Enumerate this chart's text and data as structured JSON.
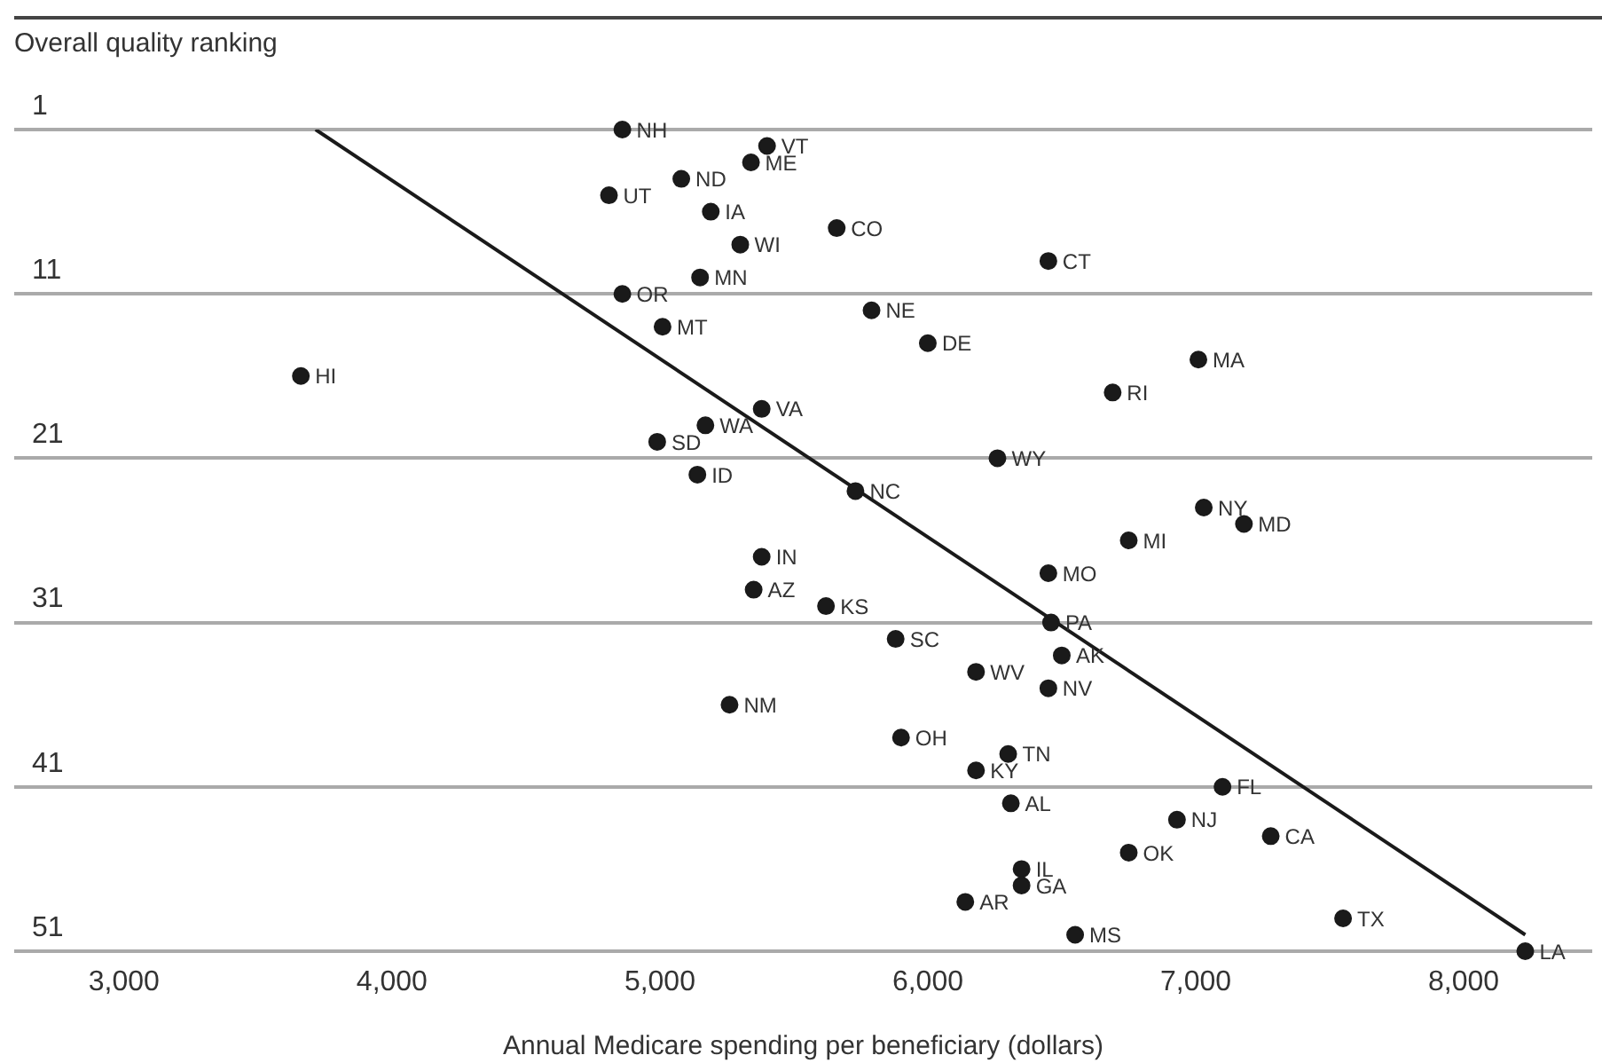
{
  "chart_data": {
    "type": "scatter",
    "xlabel": "Annual Medicare spending per beneficiary (dollars)",
    "ylabel": "Overall quality ranking",
    "xlim": [
      2590,
      8480
    ],
    "ylim": [
      51,
      1
    ],
    "xticks": [
      {
        "value": 3000,
        "label": "3,000"
      },
      {
        "value": 4000,
        "label": "4,000"
      },
      {
        "value": 5000,
        "label": "5,000"
      },
      {
        "value": 6000,
        "label": "6,000"
      },
      {
        "value": 7000,
        "label": "7,000"
      },
      {
        "value": 8000,
        "label": "8,000"
      }
    ],
    "yticks": [
      1,
      11,
      21,
      31,
      41,
      51
    ],
    "grid": "y",
    "series": [
      {
        "color": "#1a1a1a",
        "marker": "circle",
        "x": [
          4860,
          5400,
          5340,
          5080,
          4810,
          5190,
          5660,
          5300,
          6450,
          5150,
          4860,
          5790,
          5010,
          6000,
          7010,
          3660,
          6690,
          5380,
          5170,
          4990,
          6260,
          5140,
          5730,
          7030,
          7180,
          6750,
          5380,
          6450,
          5350,
          5620,
          6460,
          5880,
          6500,
          6180,
          6450,
          5260,
          5900,
          6300,
          6180,
          7100,
          6310,
          6930,
          7280,
          6750,
          6350,
          6350,
          6140,
          7550,
          6550,
          8230
        ],
        "values": [
          1,
          2,
          3,
          4,
          5,
          6,
          7,
          8,
          9,
          10,
          11,
          12,
          13,
          14,
          15,
          16,
          17,
          18,
          19,
          20,
          21,
          22,
          23,
          24,
          25,
          26,
          27,
          28,
          29,
          30,
          31,
          32,
          33,
          34,
          35,
          36,
          38,
          39,
          40,
          41,
          42,
          43,
          44,
          45,
          46,
          47,
          48,
          49,
          50,
          51
        ]
      },
      {
        "type": "line",
        "color": "#1a1a1a",
        "x": [
          3715,
          8230
        ],
        "values": [
          1,
          50
        ]
      }
    ],
    "annotations": [
      {
        "text": "NH",
        "x": 4860,
        "y": 1
      },
      {
        "text": "VT",
        "x": 5400,
        "y": 2
      },
      {
        "text": "ME",
        "x": 5340,
        "y": 3
      },
      {
        "text": "ND",
        "x": 5080,
        "y": 4
      },
      {
        "text": "UT",
        "x": 4810,
        "y": 5
      },
      {
        "text": "IA",
        "x": 5190,
        "y": 6
      },
      {
        "text": "CO",
        "x": 5660,
        "y": 7
      },
      {
        "text": "WI",
        "x": 5300,
        "y": 8
      },
      {
        "text": "CT",
        "x": 6450,
        "y": 9
      },
      {
        "text": "MN",
        "x": 5150,
        "y": 10
      },
      {
        "text": "OR",
        "x": 4860,
        "y": 11
      },
      {
        "text": "NE",
        "x": 5790,
        "y": 12
      },
      {
        "text": "MT",
        "x": 5010,
        "y": 13
      },
      {
        "text": "DE",
        "x": 6000,
        "y": 14
      },
      {
        "text": "MA",
        "x": 7010,
        "y": 15
      },
      {
        "text": "HI",
        "x": 3660,
        "y": 16
      },
      {
        "text": "RI",
        "x": 6690,
        "y": 17
      },
      {
        "text": "VA",
        "x": 5380,
        "y": 18
      },
      {
        "text": "WA",
        "x": 5170,
        "y": 19
      },
      {
        "text": "SD",
        "x": 4990,
        "y": 20
      },
      {
        "text": "WY",
        "x": 6260,
        "y": 21
      },
      {
        "text": "ID",
        "x": 5140,
        "y": 22
      },
      {
        "text": "NC",
        "x": 5730,
        "y": 23
      },
      {
        "text": "NY",
        "x": 7030,
        "y": 24
      },
      {
        "text": "MD",
        "x": 7180,
        "y": 25
      },
      {
        "text": "MI",
        "x": 6750,
        "y": 26
      },
      {
        "text": "IN",
        "x": 5380,
        "y": 27
      },
      {
        "text": "MO",
        "x": 6450,
        "y": 28
      },
      {
        "text": "AZ",
        "x": 5350,
        "y": 29
      },
      {
        "text": "KS",
        "x": 5620,
        "y": 30
      },
      {
        "text": "PA",
        "x": 6460,
        "y": 31
      },
      {
        "text": "SC",
        "x": 5880,
        "y": 32
      },
      {
        "text": "AK",
        "x": 6500,
        "y": 33
      },
      {
        "text": "WV",
        "x": 6180,
        "y": 34
      },
      {
        "text": "NV",
        "x": 6450,
        "y": 35
      },
      {
        "text": "NM",
        "x": 5260,
        "y": 36
      },
      {
        "text": "OH",
        "x": 5900,
        "y": 38
      },
      {
        "text": "TN",
        "x": 6300,
        "y": 39
      },
      {
        "text": "KY",
        "x": 6180,
        "y": 40
      },
      {
        "text": "FL",
        "x": 7100,
        "y": 41
      },
      {
        "text": "AL",
        "x": 6310,
        "y": 42
      },
      {
        "text": "NJ",
        "x": 6930,
        "y": 43
      },
      {
        "text": "CA",
        "x": 7280,
        "y": 44
      },
      {
        "text": "OK",
        "x": 6750,
        "y": 45
      },
      {
        "text": "IL",
        "x": 6350,
        "y": 46
      },
      {
        "text": "GA",
        "x": 6350,
        "y": 47
      },
      {
        "text": "AR",
        "x": 6140,
        "y": 48
      },
      {
        "text": "TX",
        "x": 7550,
        "y": 49
      },
      {
        "text": "MS",
        "x": 6550,
        "y": 50
      },
      {
        "text": "LA",
        "x": 8230,
        "y": 51
      }
    ]
  }
}
